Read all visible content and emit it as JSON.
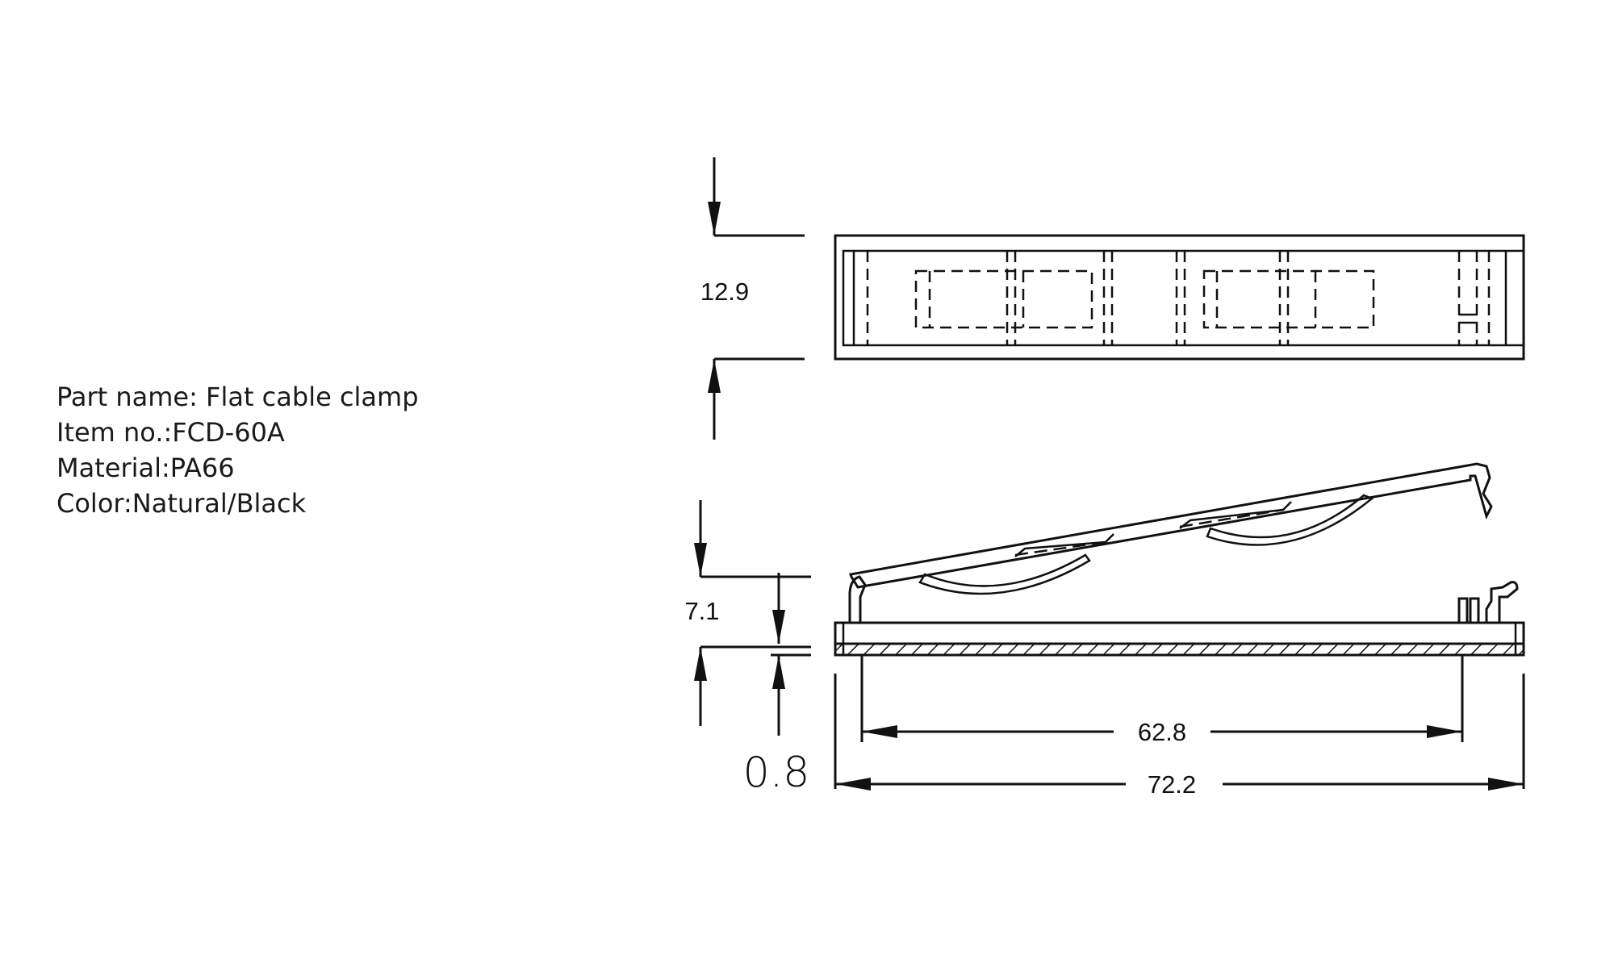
{
  "info": {
    "part_name": "Part name: Flat cable clamp",
    "item_no": "Item no.:FCD-60A",
    "material": "Material:PA66",
    "color": "Color:Natural/Black"
  },
  "dimensions": {
    "width": "12.9",
    "height": "7.1",
    "base_thickness": "0.8",
    "inner_length": "62.8",
    "overall_length": "72.2"
  }
}
